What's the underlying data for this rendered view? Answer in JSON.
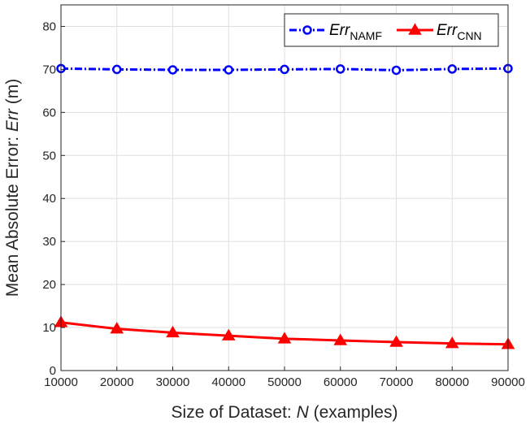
{
  "chart_data": {
    "type": "line",
    "x": [
      10000,
      20000,
      30000,
      40000,
      50000,
      60000,
      70000,
      80000,
      90000
    ],
    "xlim": [
      10000,
      90000
    ],
    "ylim": [
      0,
      85
    ],
    "xticks": [
      "10000",
      "20000",
      "30000",
      "40000",
      "50000",
      "60000",
      "70000",
      "80000",
      "90000"
    ],
    "yticks": [
      "0",
      "10",
      "20",
      "30",
      "40",
      "50",
      "60",
      "70",
      "80"
    ],
    "xlabel": {
      "prefix": "Size of Dataset: ",
      "var": "N",
      "suffix": " (examples)"
    },
    "ylabel": {
      "prefix": "Mean Absolute Error: ",
      "var": "Err",
      "suffix": " (m)"
    },
    "grid": true,
    "legend_position": "top-right",
    "series": [
      {
        "name_main": "Err",
        "name_sub": "NAMF",
        "color": "#0000ff",
        "style": "dash-dot",
        "marker": "circle",
        "values": [
          70.2,
          70.0,
          69.9,
          69.9,
          70.0,
          70.1,
          69.8,
          70.1,
          70.2
        ]
      },
      {
        "name_main": "Err",
        "name_sub": "CNN",
        "color": "#ff0000",
        "style": "solid",
        "marker": "triangle",
        "values": [
          11.2,
          9.7,
          8.8,
          8.1,
          7.4,
          7.0,
          6.6,
          6.3,
          6.1
        ]
      }
    ]
  }
}
